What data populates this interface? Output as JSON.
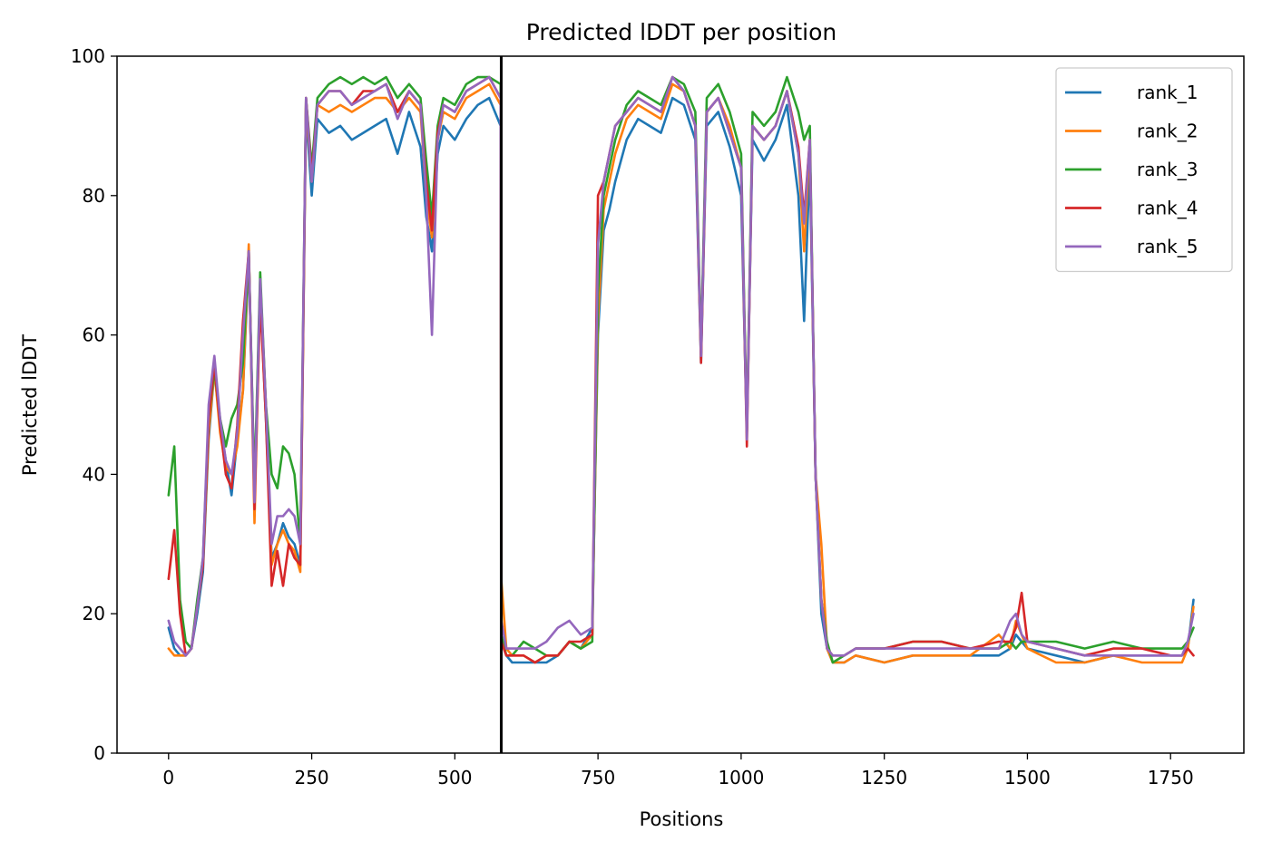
{
  "chart_data": {
    "type": "line",
    "title": "Predicted lDDT per position",
    "xlabel": "Positions",
    "ylabel": "Predicted lDDT",
    "xlim": [
      -90,
      1878
    ],
    "ylim": [
      0,
      100
    ],
    "xticks": [
      0,
      250,
      500,
      750,
      1000,
      1250,
      1500,
      1750
    ],
    "yticks": [
      0,
      20,
      40,
      60,
      80,
      100
    ],
    "grid": false,
    "legend_position": "top-right",
    "separator_x": 581,
    "x": [
      0,
      10,
      20,
      30,
      40,
      50,
      60,
      70,
      80,
      90,
      100,
      110,
      120,
      130,
      140,
      150,
      160,
      170,
      180,
      190,
      200,
      210,
      220,
      230,
      240,
      250,
      260,
      280,
      300,
      320,
      340,
      360,
      380,
      400,
      420,
      440,
      450,
      460,
      470,
      480,
      500,
      520,
      540,
      560,
      580,
      581,
      590,
      600,
      620,
      640,
      660,
      680,
      700,
      720,
      740,
      750,
      760,
      770,
      780,
      800,
      820,
      840,
      860,
      880,
      900,
      920,
      930,
      940,
      960,
      980,
      1000,
      1010,
      1020,
      1040,
      1060,
      1080,
      1100,
      1110,
      1120,
      1130,
      1140,
      1150,
      1160,
      1180,
      1200,
      1250,
      1300,
      1350,
      1400,
      1450,
      1470,
      1480,
      1490,
      1500,
      1550,
      1600,
      1650,
      1700,
      1750,
      1770,
      1780,
      1790
    ],
    "series": [
      {
        "name": "rank_1",
        "color": "#1f77b4",
        "values": [
          18,
          15,
          14,
          14,
          15,
          20,
          26,
          45,
          55,
          47,
          42,
          37,
          45,
          52,
          71,
          38,
          66,
          48,
          28,
          30,
          33,
          31,
          30,
          27,
          92,
          80,
          91,
          89,
          90,
          88,
          89,
          90,
          91,
          86,
          92,
          87,
          77,
          72,
          86,
          90,
          88,
          91,
          93,
          94,
          90,
          16,
          14,
          13,
          13,
          13,
          13,
          14,
          16,
          15,
          18,
          60,
          75,
          78,
          82,
          88,
          91,
          90,
          89,
          94,
          93,
          88,
          56,
          90,
          92,
          87,
          80,
          46,
          88,
          85,
          88,
          93,
          80,
          62,
          85,
          40,
          20,
          15,
          13,
          13,
          14,
          13,
          14,
          14,
          14,
          14,
          15,
          17,
          16,
          15,
          14,
          13,
          14,
          14,
          14,
          14,
          15,
          22
        ]
      },
      {
        "name": "rank_2",
        "color": "#ff7f0e",
        "values": [
          15,
          14,
          14,
          14,
          15,
          21,
          27,
          46,
          55,
          46,
          41,
          40,
          44,
          52,
          73,
          33,
          67,
          50,
          27,
          30,
          32,
          30,
          29,
          26,
          93,
          82,
          93,
          92,
          93,
          92,
          93,
          94,
          94,
          92,
          94,
          92,
          80,
          74,
          88,
          92,
          91,
          94,
          95,
          96,
          93,
          25,
          15,
          14,
          14,
          13,
          14,
          14,
          16,
          15,
          17,
          62,
          78,
          82,
          86,
          91,
          93,
          92,
          91,
          96,
          95,
          90,
          57,
          92,
          94,
          90,
          84,
          46,
          90,
          88,
          90,
          95,
          86,
          72,
          88,
          40,
          30,
          15,
          13,
          13,
          14,
          13,
          14,
          14,
          14,
          17,
          15,
          19,
          17,
          15,
          13,
          13,
          14,
          13,
          13,
          13,
          15,
          21
        ]
      },
      {
        "name": "rank_3",
        "color": "#2ca02c",
        "values": [
          37,
          44,
          22,
          16,
          15,
          22,
          28,
          48,
          55,
          48,
          44,
          48,
          50,
          56,
          72,
          38,
          69,
          50,
          40,
          38,
          44,
          43,
          40,
          30,
          94,
          84,
          94,
          96,
          97,
          96,
          97,
          96,
          97,
          94,
          96,
          94,
          85,
          77,
          90,
          94,
          93,
          96,
          97,
          97,
          96,
          17,
          14,
          14,
          16,
          15,
          14,
          14,
          16,
          15,
          16,
          66,
          80,
          84,
          88,
          93,
          95,
          94,
          93,
          97,
          96,
          92,
          58,
          94,
          96,
          92,
          86,
          46,
          92,
          90,
          92,
          97,
          92,
          88,
          90,
          40,
          22,
          16,
          13,
          14,
          15,
          15,
          16,
          16,
          15,
          15,
          16,
          15,
          16,
          16,
          16,
          15,
          16,
          15,
          15,
          15,
          16,
          18
        ]
      },
      {
        "name": "rank_4",
        "color": "#d62728",
        "values": [
          25,
          32,
          20,
          14,
          15,
          21,
          27,
          48,
          56,
          47,
          40,
          38,
          47,
          62,
          72,
          35,
          65,
          48,
          24,
          29,
          24,
          30,
          28,
          27,
          94,
          83,
          93,
          95,
          95,
          93,
          95,
          95,
          96,
          92,
          95,
          93,
          82,
          75,
          89,
          93,
          92,
          95,
          96,
          97,
          94,
          16,
          14,
          14,
          14,
          13,
          14,
          14,
          16,
          16,
          17,
          80,
          82,
          86,
          90,
          92,
          94,
          93,
          92,
          97,
          95,
          90,
          56,
          92,
          94,
          89,
          84,
          44,
          90,
          88,
          90,
          95,
          87,
          77,
          88,
          40,
          22,
          15,
          14,
          14,
          15,
          15,
          16,
          16,
          15,
          16,
          16,
          18,
          23,
          16,
          15,
          14,
          15,
          15,
          14,
          14,
          15,
          14
        ]
      },
      {
        "name": "rank_5",
        "color": "#9467bd",
        "values": [
          19,
          16,
          15,
          14,
          15,
          21,
          28,
          50,
          57,
          48,
          42,
          40,
          46,
          60,
          72,
          36,
          68,
          50,
          30,
          34,
          34,
          35,
          34,
          30,
          94,
          82,
          93,
          95,
          95,
          93,
          94,
          95,
          96,
          91,
          95,
          93,
          80,
          60,
          88,
          93,
          92,
          95,
          96,
          97,
          94,
          19,
          15,
          15,
          15,
          15,
          16,
          18,
          19,
          17,
          18,
          73,
          82,
          86,
          90,
          92,
          94,
          93,
          92,
          97,
          95,
          90,
          57,
          92,
          94,
          89,
          84,
          45,
          90,
          88,
          90,
          95,
          86,
          76,
          88,
          40,
          22,
          15,
          14,
          14,
          15,
          15,
          15,
          15,
          15,
          15,
          19,
          20,
          17,
          16,
          15,
          14,
          14,
          14,
          14,
          14,
          16,
          20
        ]
      }
    ]
  }
}
